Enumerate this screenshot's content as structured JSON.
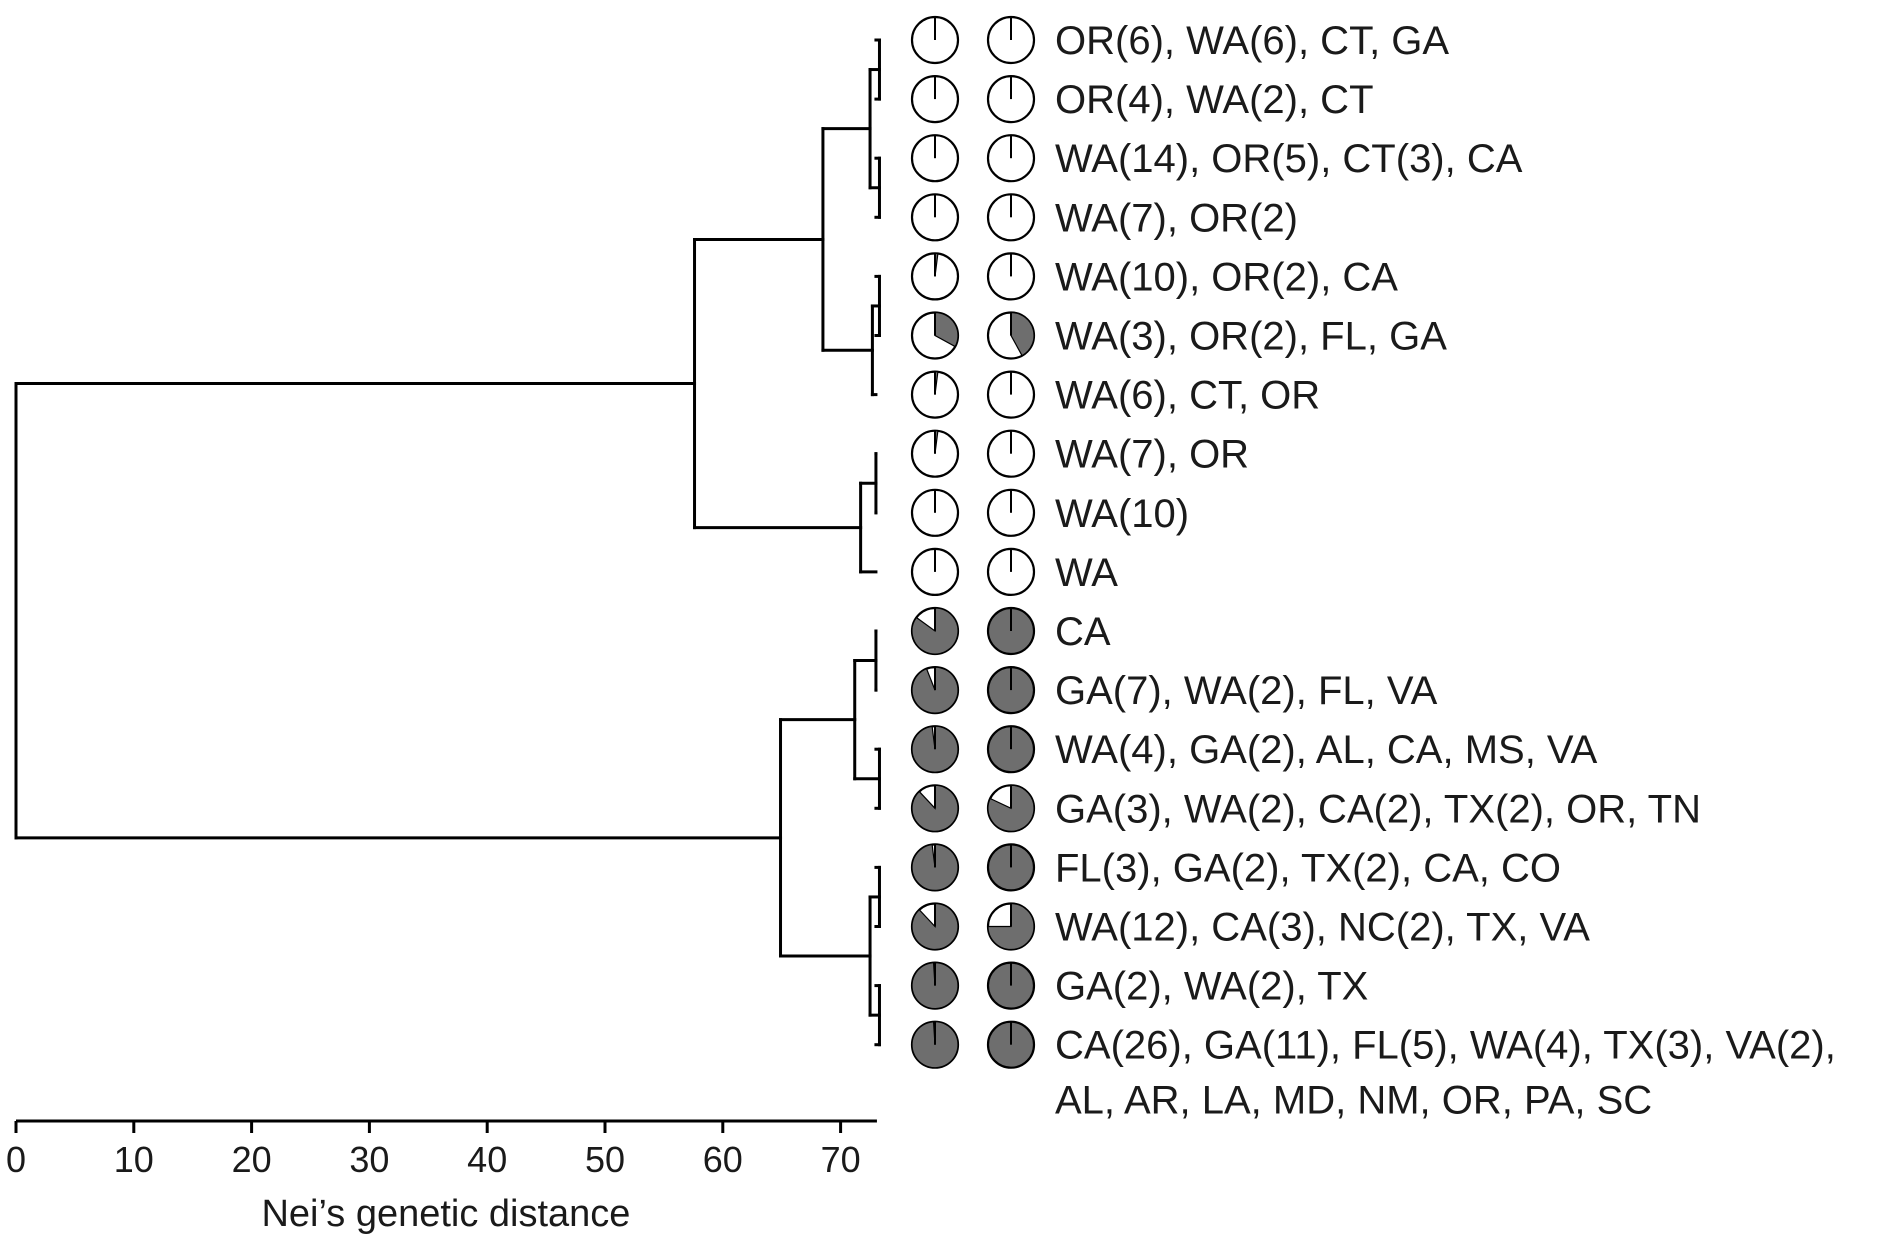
{
  "chart_data": {
    "type": "dendrogram",
    "xlabel": "Nei’s genetic distance",
    "xlim": [
      0,
      73
    ],
    "ticks": [
      0,
      10,
      20,
      30,
      40,
      50,
      60,
      70
    ],
    "colors": {
      "light": "#ffffff",
      "dark": "#6e6e6e",
      "line": "#000000"
    },
    "leaves": [
      {
        "label_lines": [
          "OR(6), WA(6), CT, GA"
        ],
        "pie1_dark": 0.0,
        "pie2_dark": 0.0
      },
      {
        "label_lines": [
          "OR(4), WA(2), CT"
        ],
        "pie1_dark": 0.0,
        "pie2_dark": 0.0
      },
      {
        "label_lines": [
          "WA(14), OR(5), CT(3), CA"
        ],
        "pie1_dark": 0.0,
        "pie2_dark": 0.0
      },
      {
        "label_lines": [
          "WA(7), OR(2)"
        ],
        "pie1_dark": 0.0,
        "pie2_dark": 0.0
      },
      {
        "label_lines": [
          "WA(10), OR(2), CA"
        ],
        "pie1_dark": 0.02,
        "pie2_dark": 0.0
      },
      {
        "label_lines": [
          "WA(3), OR(2), FL, GA"
        ],
        "pie1_dark": 0.33,
        "pie2_dark": 0.42
      },
      {
        "label_lines": [
          "WA(6), CT, OR"
        ],
        "pie1_dark": 0.02,
        "pie2_dark": 0.0
      },
      {
        "label_lines": [
          "WA(7), OR"
        ],
        "pie1_dark": 0.02,
        "pie2_dark": 0.0
      },
      {
        "label_lines": [
          "WA(10)"
        ],
        "pie1_dark": 0.0,
        "pie2_dark": 0.0
      },
      {
        "label_lines": [
          "WA"
        ],
        "pie1_dark": 0.0,
        "pie2_dark": 0.0
      },
      {
        "label_lines": [
          "CA"
        ],
        "pie1_dark": 0.85,
        "pie2_dark": 1.0
      },
      {
        "label_lines": [
          "GA(7), WA(2), FL, VA"
        ],
        "pie1_dark": 0.94,
        "pie2_dark": 1.0
      },
      {
        "label_lines": [
          "WA(4), GA(2), AL, CA, MS, VA"
        ],
        "pie1_dark": 0.98,
        "pie2_dark": 1.0
      },
      {
        "label_lines": [
          "GA(3), WA(2), CA(2), TX(2), OR, TN"
        ],
        "pie1_dark": 0.88,
        "pie2_dark": 0.82
      },
      {
        "label_lines": [
          "FL(3), GA(2), TX(2), CA, CO"
        ],
        "pie1_dark": 0.98,
        "pie2_dark": 1.0
      },
      {
        "label_lines": [
          "WA(12), CA(3), NC(2), TX, VA"
        ],
        "pie1_dark": 0.88,
        "pie2_dark": 0.75
      },
      {
        "label_lines": [
          "GA(2), WA(2), TX"
        ],
        "pie1_dark": 0.99,
        "pie2_dark": 1.0
      },
      {
        "label_lines": [
          "CA(26), GA(11), FL(5), WA(4), TX(3), VA(2),",
          "AL, AR, LA, MD, NM, OR, PA, SC"
        ],
        "pie1_dark": 0.99,
        "pie2_dark": 1.0
      }
    ],
    "merges": [
      {
        "id": "c1",
        "children": [
          0,
          1
        ],
        "height": 73.3
      },
      {
        "id": "c2",
        "children": [
          2,
          3
        ],
        "height": 73.3
      },
      {
        "id": "c3",
        "children": [
          "c1",
          "c2"
        ],
        "height": 72.5
      },
      {
        "id": "c4",
        "children": [
          4,
          5
        ],
        "height": 73.3
      },
      {
        "id": "c5",
        "children": [
          "c4",
          6
        ],
        "height": 72.7
      },
      {
        "id": "c6",
        "children": [
          "c3",
          "c5"
        ],
        "height": 68.5
      },
      {
        "id": "c7",
        "children": [
          7,
          8
        ],
        "height": 73.0
      },
      {
        "id": "c8",
        "children": [
          "c7",
          9
        ],
        "height": 71.7
      },
      {
        "id": "c9",
        "children": [
          "c6",
          "c8"
        ],
        "height": 57.6
      },
      {
        "id": "c10",
        "children": [
          10,
          11
        ],
        "height": 73.0
      },
      {
        "id": "c11",
        "children": [
          12,
          13
        ],
        "height": 73.3
      },
      {
        "id": "c12",
        "children": [
          "c10",
          "c11"
        ],
        "height": 71.2
      },
      {
        "id": "c13",
        "children": [
          14,
          15
        ],
        "height": 73.3
      },
      {
        "id": "c14",
        "children": [
          16,
          17
        ],
        "height": 73.3
      },
      {
        "id": "c15",
        "children": [
          "c13",
          "c14"
        ],
        "height": 72.5
      },
      {
        "id": "c16",
        "children": [
          "c12",
          "c15"
        ],
        "height": 64.9
      },
      {
        "id": "c17",
        "children": [
          "c9",
          "c16"
        ],
        "height": 0.0
      }
    ]
  }
}
